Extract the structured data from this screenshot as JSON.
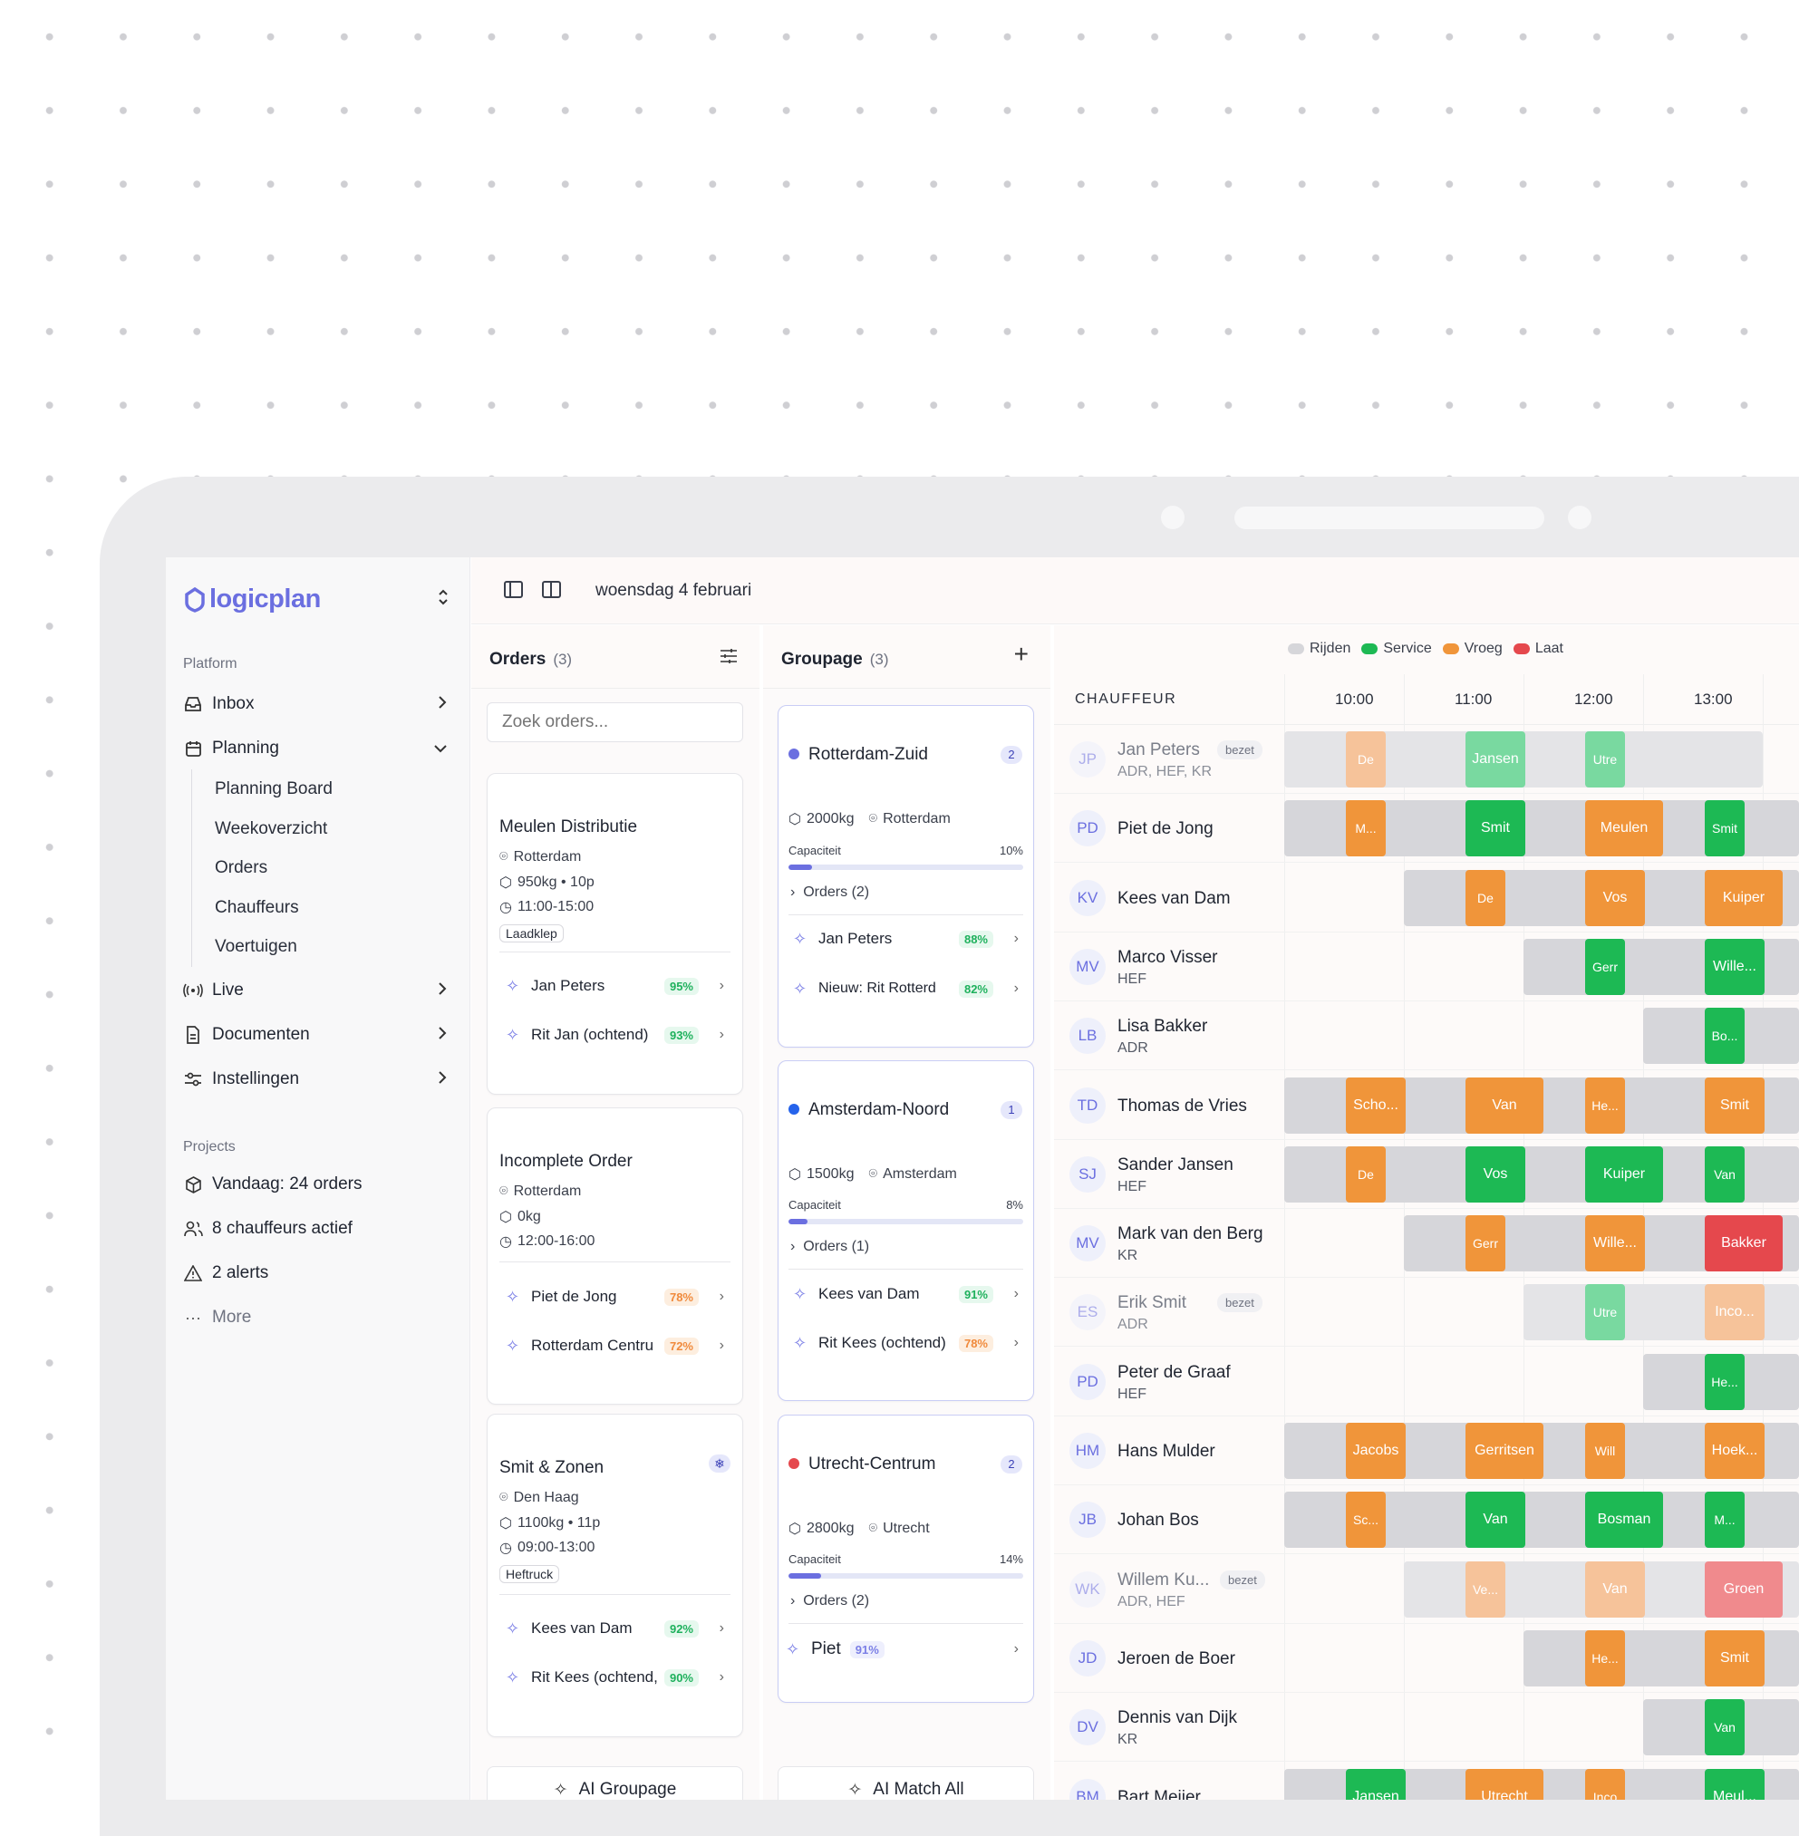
{
  "app": {
    "logo_text": "logicplan",
    "date": "woensdag 4 februari"
  },
  "sidebar": {
    "platform_label": "Platform",
    "items": [
      {
        "label": "Inbox",
        "icon": "inbox-icon"
      },
      {
        "label": "Planning",
        "icon": "calendar-icon"
      },
      {
        "label": "Live",
        "icon": "broadcast-icon"
      },
      {
        "label": "Documenten",
        "icon": "document-icon"
      },
      {
        "label": "Instellingen",
        "icon": "settings-icon"
      }
    ],
    "planning_sub": [
      "Planning Board",
      "Weekoverzicht",
      "Orders",
      "Chauffeurs",
      "Voertuigen"
    ],
    "projects_label": "Projects",
    "projects": [
      {
        "label": "Vandaag: 24 orders",
        "icon": "package-icon"
      },
      {
        "label": "8 chauffeurs actief",
        "icon": "users-icon"
      },
      {
        "label": "2 alerts",
        "icon": "alert-icon"
      },
      {
        "label": "More",
        "icon": "more-icon"
      }
    ]
  },
  "orders": {
    "title": "Orders",
    "count": "(3)",
    "search_placeholder": "Zoek orders...",
    "cards": [
      {
        "name": "Meulen Distributie",
        "city": "Rotterdam",
        "load": "950kg • 10p",
        "time": "11:00-15:00",
        "tag": "Laadklep",
        "matches": [
          {
            "name": "Jan Peters",
            "pct": "95%",
            "tone": "gr"
          },
          {
            "name": "Rit Jan (ochtend)",
            "pct": "93%",
            "tone": "gr"
          }
        ]
      },
      {
        "name": "Incomplete Order",
        "city": "Rotterdam",
        "load": "0kg",
        "time": "12:00-16:00",
        "tag": "",
        "matches": [
          {
            "name": "Piet de Jong",
            "pct": "78%",
            "tone": "or"
          },
          {
            "name": "Rotterdam Centru",
            "pct": "72%",
            "tone": "or"
          }
        ]
      },
      {
        "name": "Smit & Zonen",
        "city": "Den Haag",
        "load": "1100kg • 11p",
        "time": "09:00-13:00",
        "tag": "Heftruck",
        "matches": [
          {
            "name": "Kees van Dam",
            "pct": "92%",
            "tone": "gr"
          },
          {
            "name": "Rit Kees (ochtend,",
            "pct": "90%",
            "tone": "gr"
          }
        ]
      }
    ],
    "button": "AI Groupage"
  },
  "groupage": {
    "title": "Groupage",
    "count": "(3)",
    "cards": [
      {
        "name": "Rotterdam-Zuid",
        "badge": "2",
        "dot": "#6b6fe0",
        "weight": "2000kg",
        "city": "Rotterdam",
        "cap_label": "Capaciteit",
        "cap": "10%",
        "cap_frac": 0.1,
        "orders": "Orders (2)",
        "matches": [
          {
            "name": "Jan Peters",
            "pct": "88%",
            "tone": "gr"
          },
          {
            "name": "Nieuw: Rit Rotterd",
            "pct": "82%",
            "tone": "gr"
          }
        ]
      },
      {
        "name": "Amsterdam-Noord",
        "badge": "1",
        "dot": "#2563eb",
        "weight": "1500kg",
        "city": "Amsterdam",
        "cap_label": "Capaciteit",
        "cap": "8%",
        "cap_frac": 0.08,
        "orders": "Orders (1)",
        "matches": [
          {
            "name": "Kees van Dam",
            "pct": "91%",
            "tone": "gr"
          },
          {
            "name": "Rit Kees (ochtend)",
            "pct": "78%",
            "tone": "or"
          }
        ]
      },
      {
        "name": "Utrecht-Centrum",
        "badge": "2",
        "dot": "#e5484d",
        "weight": "2800kg",
        "city": "Utrecht",
        "cap_label": "Capaciteit",
        "cap": "14%",
        "cap_frac": 0.14,
        "orders": "Orders (2)",
        "matches": [
          {
            "name": "Piet",
            "pct": "91%",
            "tone": "bl"
          }
        ]
      }
    ],
    "button": "AI Match All"
  },
  "schedule": {
    "legend": [
      {
        "label": "Rijden",
        "color": "#d6d6da"
      },
      {
        "label": "Service",
        "color": "#1db954"
      },
      {
        "label": "Vroeg",
        "color": "#f0953a"
      },
      {
        "label": "Laat",
        "color": "#e5484d"
      }
    ],
    "header": "CHAUFFEUR",
    "hours": [
      "10:00",
      "11:00",
      "12:00",
      "13:00"
    ],
    "drivers": [
      {
        "initials": "JP",
        "name": "Jan Peters",
        "sub": "ADR, HEF, KR",
        "bezet": "bezet",
        "dim": true
      },
      {
        "initials": "PD",
        "name": "Piet de Jong",
        "sub": "",
        "bezet": ""
      },
      {
        "initials": "KV",
        "name": "Kees van Dam",
        "sub": "",
        "bezet": ""
      },
      {
        "initials": "MV",
        "name": "Marco Visser",
        "sub": "HEF",
        "bezet": ""
      },
      {
        "initials": "LB",
        "name": "Lisa Bakker",
        "sub": "ADR",
        "bezet": ""
      },
      {
        "initials": "TD",
        "name": "Thomas de Vries",
        "sub": "",
        "bezet": ""
      },
      {
        "initials": "SJ",
        "name": "Sander Jansen",
        "sub": "HEF",
        "bezet": ""
      },
      {
        "initials": "MV",
        "name": "Mark van den Berg",
        "sub": "KR",
        "bezet": ""
      },
      {
        "initials": "ES",
        "name": "Erik Smit",
        "sub": "ADR",
        "bezet": "bezet",
        "dim": true
      },
      {
        "initials": "PD",
        "name": "Peter de Graaf",
        "sub": "HEF",
        "bezet": ""
      },
      {
        "initials": "HM",
        "name": "Hans Mulder",
        "sub": "",
        "bezet": ""
      },
      {
        "initials": "JB",
        "name": "Johan Bos",
        "sub": "",
        "bezet": ""
      },
      {
        "initials": "WK",
        "name": "Willem Ku...",
        "sub": "ADR, HEF",
        "bezet": "bezet",
        "dim": true
      },
      {
        "initials": "JD",
        "name": "Jeroen de Boer",
        "sub": "",
        "bezet": ""
      },
      {
        "initials": "DV",
        "name": "Dennis van Dijk",
        "sub": "KR",
        "bezet": ""
      },
      {
        "initials": "BM",
        "name": "Bart Meijer",
        "sub": "",
        "bezet": ""
      }
    ],
    "blocks": [
      [
        [
          "De",
          "o"
        ],
        [
          "Jansen",
          "g"
        ],
        [
          "Utre",
          "g"
        ]
      ],
      [
        [
          "M...",
          "o"
        ],
        [
          "Smit",
          "g"
        ],
        [
          "Meulen",
          "o"
        ],
        [
          "Smit",
          "g"
        ]
      ],
      [
        [
          "De",
          "o"
        ],
        [
          "Vos",
          "o"
        ],
        [
          "Kuiper",
          "o"
        ]
      ],
      [
        [
          "Gerr",
          "g"
        ],
        [
          "Wille...",
          "g"
        ]
      ],
      [
        [
          "Bo...",
          "g"
        ]
      ],
      [
        [
          "Scho...",
          "o"
        ],
        [
          "Van",
          "o"
        ],
        [
          "He...",
          "o"
        ],
        [
          "Smit",
          "o"
        ]
      ],
      [
        [
          "De",
          "o"
        ],
        [
          "Vos",
          "g"
        ],
        [
          "Kuiper",
          "g"
        ],
        [
          "Van",
          "g"
        ]
      ],
      [
        [
          "Gerr",
          "o"
        ],
        [
          "Wille...",
          "o"
        ],
        [
          "Bakker",
          "r"
        ]
      ],
      [
        [
          "Utre",
          "g"
        ],
        [
          "Inco...",
          "o"
        ]
      ],
      [
        [
          "He...",
          "g"
        ]
      ],
      [
        [
          "Jacobs",
          "o"
        ],
        [
          "Gerritsen",
          "o"
        ],
        [
          "Will",
          "o"
        ],
        [
          "Hoek...",
          "o"
        ]
      ],
      [
        [
          "Sc...",
          "o"
        ],
        [
          "Van",
          "g"
        ],
        [
          "Bosman",
          "g"
        ],
        [
          "M...",
          "g"
        ]
      ],
      [
        [
          "Ve...",
          "o"
        ],
        [
          "Van",
          "o"
        ],
        [
          "Groen",
          "r"
        ]
      ],
      [
        [
          "He...",
          "o"
        ],
        [
          "Smit",
          "o"
        ]
      ],
      [
        [
          "Van",
          "g"
        ]
      ],
      [
        [
          "Jansen",
          "g"
        ],
        [
          "Utrecht",
          "o"
        ],
        [
          "Inco",
          "o"
        ],
        [
          "Meul...",
          "g"
        ]
      ]
    ]
  }
}
